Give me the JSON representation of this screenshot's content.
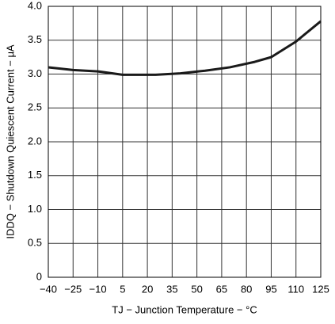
{
  "chart_data": {
    "type": "line",
    "x_label": "TJ − Junction Temperature − °C",
    "y_label": "IDDQ − Shutdown Quiescent Current − μA",
    "x": [
      -40,
      -25,
      -10,
      5,
      25,
      40,
      55,
      70,
      85,
      95,
      110,
      125
    ],
    "series": [
      {
        "color": "#1a1a1a",
        "values": [
          3.1,
          3.06,
          3.04,
          2.99,
          2.99,
          3.01,
          3.05,
          3.1,
          3.18,
          3.25,
          3.48,
          3.78
        ]
      }
    ],
    "xlim": [
      -40,
      125
    ],
    "xticks": [
      {
        "value": -40,
        "label": "−40"
      },
      {
        "value": -25,
        "label": "−25"
      },
      {
        "value": -10,
        "label": "−10"
      },
      5,
      20,
      35,
      50,
      65,
      80,
      95,
      110,
      125
    ],
    "ylim": [
      0,
      4
    ],
    "yticks": [
      0,
      0.5,
      {
        "value": 1,
        "label": "1.0"
      },
      1.5,
      {
        "value": 2,
        "label": "2.0"
      },
      2.5,
      {
        "value": 3,
        "label": "3.0"
      },
      3.5,
      {
        "value": 4,
        "label": "4.0"
      }
    ],
    "grid": true
  }
}
